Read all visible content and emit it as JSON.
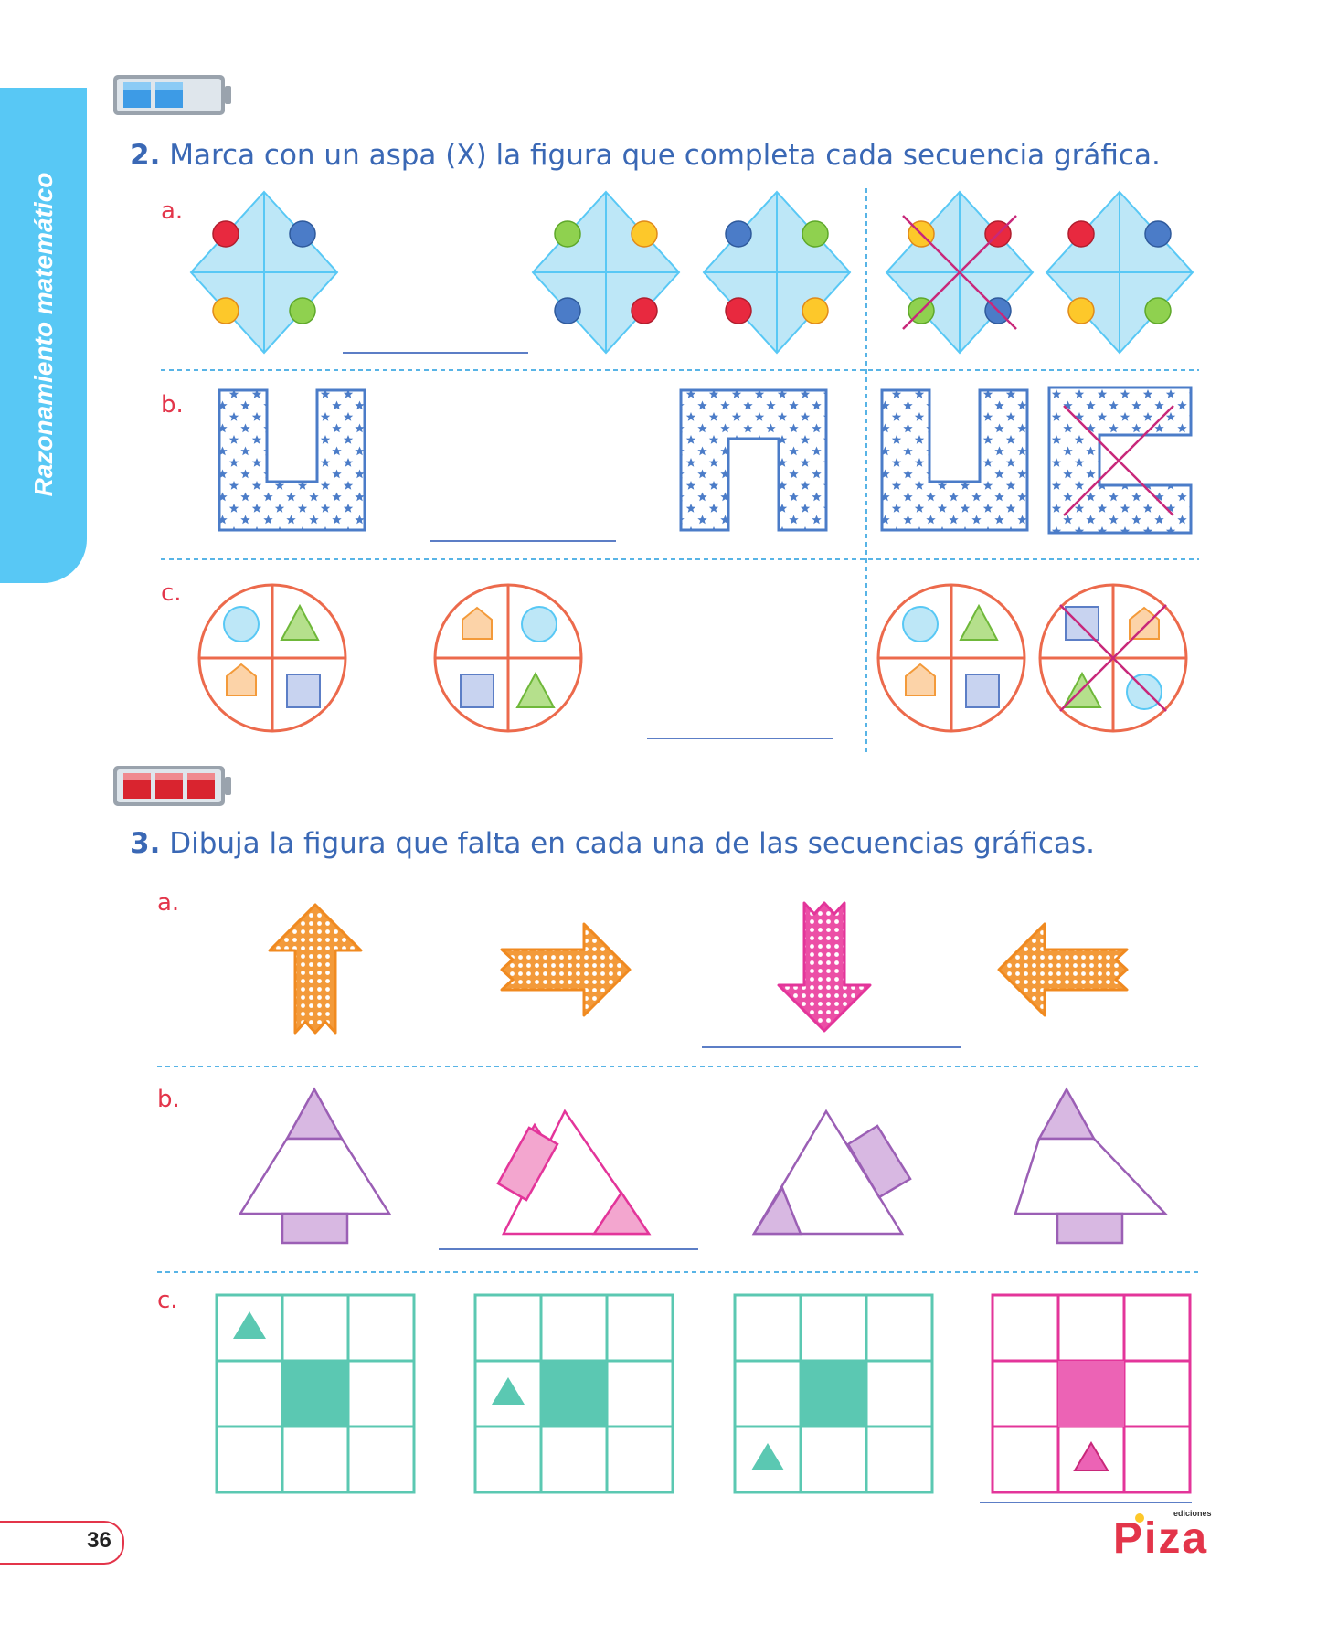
{
  "sidebar": {
    "section_title": "Razonamiento matemático"
  },
  "exercise2": {
    "number": "2.",
    "instruction": "Marca con un aspa (X) la figura que completa cada secuencia gráfica.",
    "items": {
      "a": "a.",
      "b": "b.",
      "c": "c."
    }
  },
  "exercise3": {
    "number": "3.",
    "instruction": "Dibuja la figura que falta en cada una de las secuencias gráficas.",
    "items": {
      "a": "a.",
      "b": "b.",
      "c": "c."
    }
  },
  "footer": {
    "page_number": "36",
    "publisher_small": "ediciones",
    "publisher_logo": "Piza"
  },
  "colors": {
    "blue_text": "#3a68b5",
    "red": "#e3354a",
    "cyan": "#58c8f5",
    "teal": "#5bc8b2",
    "magenta": "#e3359a",
    "orange": "#f39a3a",
    "purple": "#9b5fb5"
  },
  "icons": {
    "level_easy": "battery-two-bars-icon",
    "level_hard": "battery-three-bars-icon"
  }
}
